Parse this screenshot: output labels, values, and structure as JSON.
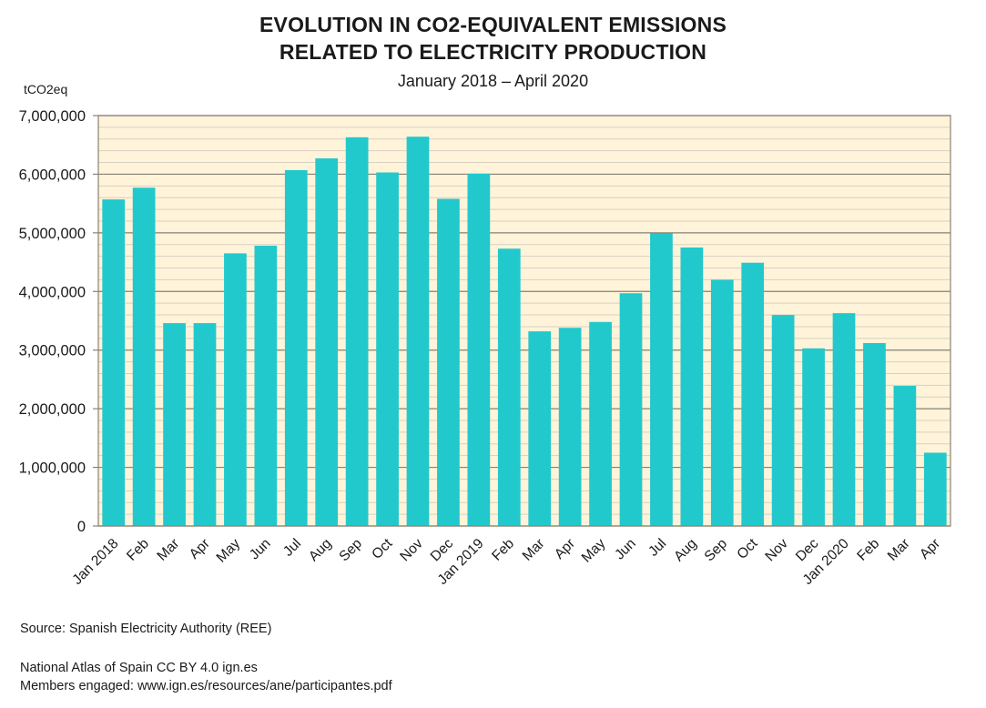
{
  "chart_data": {
    "type": "bar",
    "title": "EVOLUTION IN CO2-EQUIVALENT EMISSIONS RELATED TO ELECTRICITY PRODUCTION",
    "title_lines": [
      "EVOLUTION IN CO2-EQUIVALENT EMISSIONS",
      "RELATED TO ELECTRICITY PRODUCTION"
    ],
    "subtitle": "January 2018 – April 2020",
    "xlabel": "",
    "ylabel": "tCO2eq",
    "ylim": [
      0,
      7000000
    ],
    "yticks": [
      0,
      1000000,
      2000000,
      3000000,
      4000000,
      5000000,
      6000000,
      7000000
    ],
    "ytick_labels": [
      "0",
      "1,000,000",
      "2,000,000",
      "3,000,000",
      "4,000,000",
      "5,000,000",
      "6,000,000",
      "7,000,000"
    ],
    "minor_grid_step": 200000,
    "grid": true,
    "legend": "none",
    "colors": {
      "bar": "#22c9cc",
      "plot_bg": "#fff4da",
      "major_grid": "#8a8276",
      "minor_grid": "#d8d0c0"
    },
    "categories": [
      "Jan 2018",
      "Feb",
      "Mar",
      "Apr",
      "May",
      "Jun",
      "Jul",
      "Aug",
      "Sep",
      "Oct",
      "Nov",
      "Dec",
      "Jan 2019",
      "Feb",
      "Mar",
      "Apr",
      "May",
      "Jun",
      "Jul",
      "Aug",
      "Sep",
      "Oct",
      "Nov",
      "Dec",
      "Jan 2020",
      "Feb",
      "Mar",
      "Apr"
    ],
    "values": [
      5570000,
      5770000,
      3460000,
      3460000,
      4650000,
      4780000,
      6070000,
      6270000,
      6630000,
      6030000,
      6640000,
      5580000,
      6010000,
      4730000,
      3320000,
      3380000,
      3480000,
      3970000,
      4990000,
      4750000,
      4200000,
      4490000,
      3600000,
      3030000,
      3630000,
      3120000,
      2390000,
      1250000
    ]
  },
  "footer": {
    "source": "Source: Spanish Electricity Authority (REE)",
    "atlas": "National Atlas of Spain CC BY 4.0 ign.es",
    "members": "Members engaged: www.ign.es/resources/ane/participantes.pdf"
  }
}
